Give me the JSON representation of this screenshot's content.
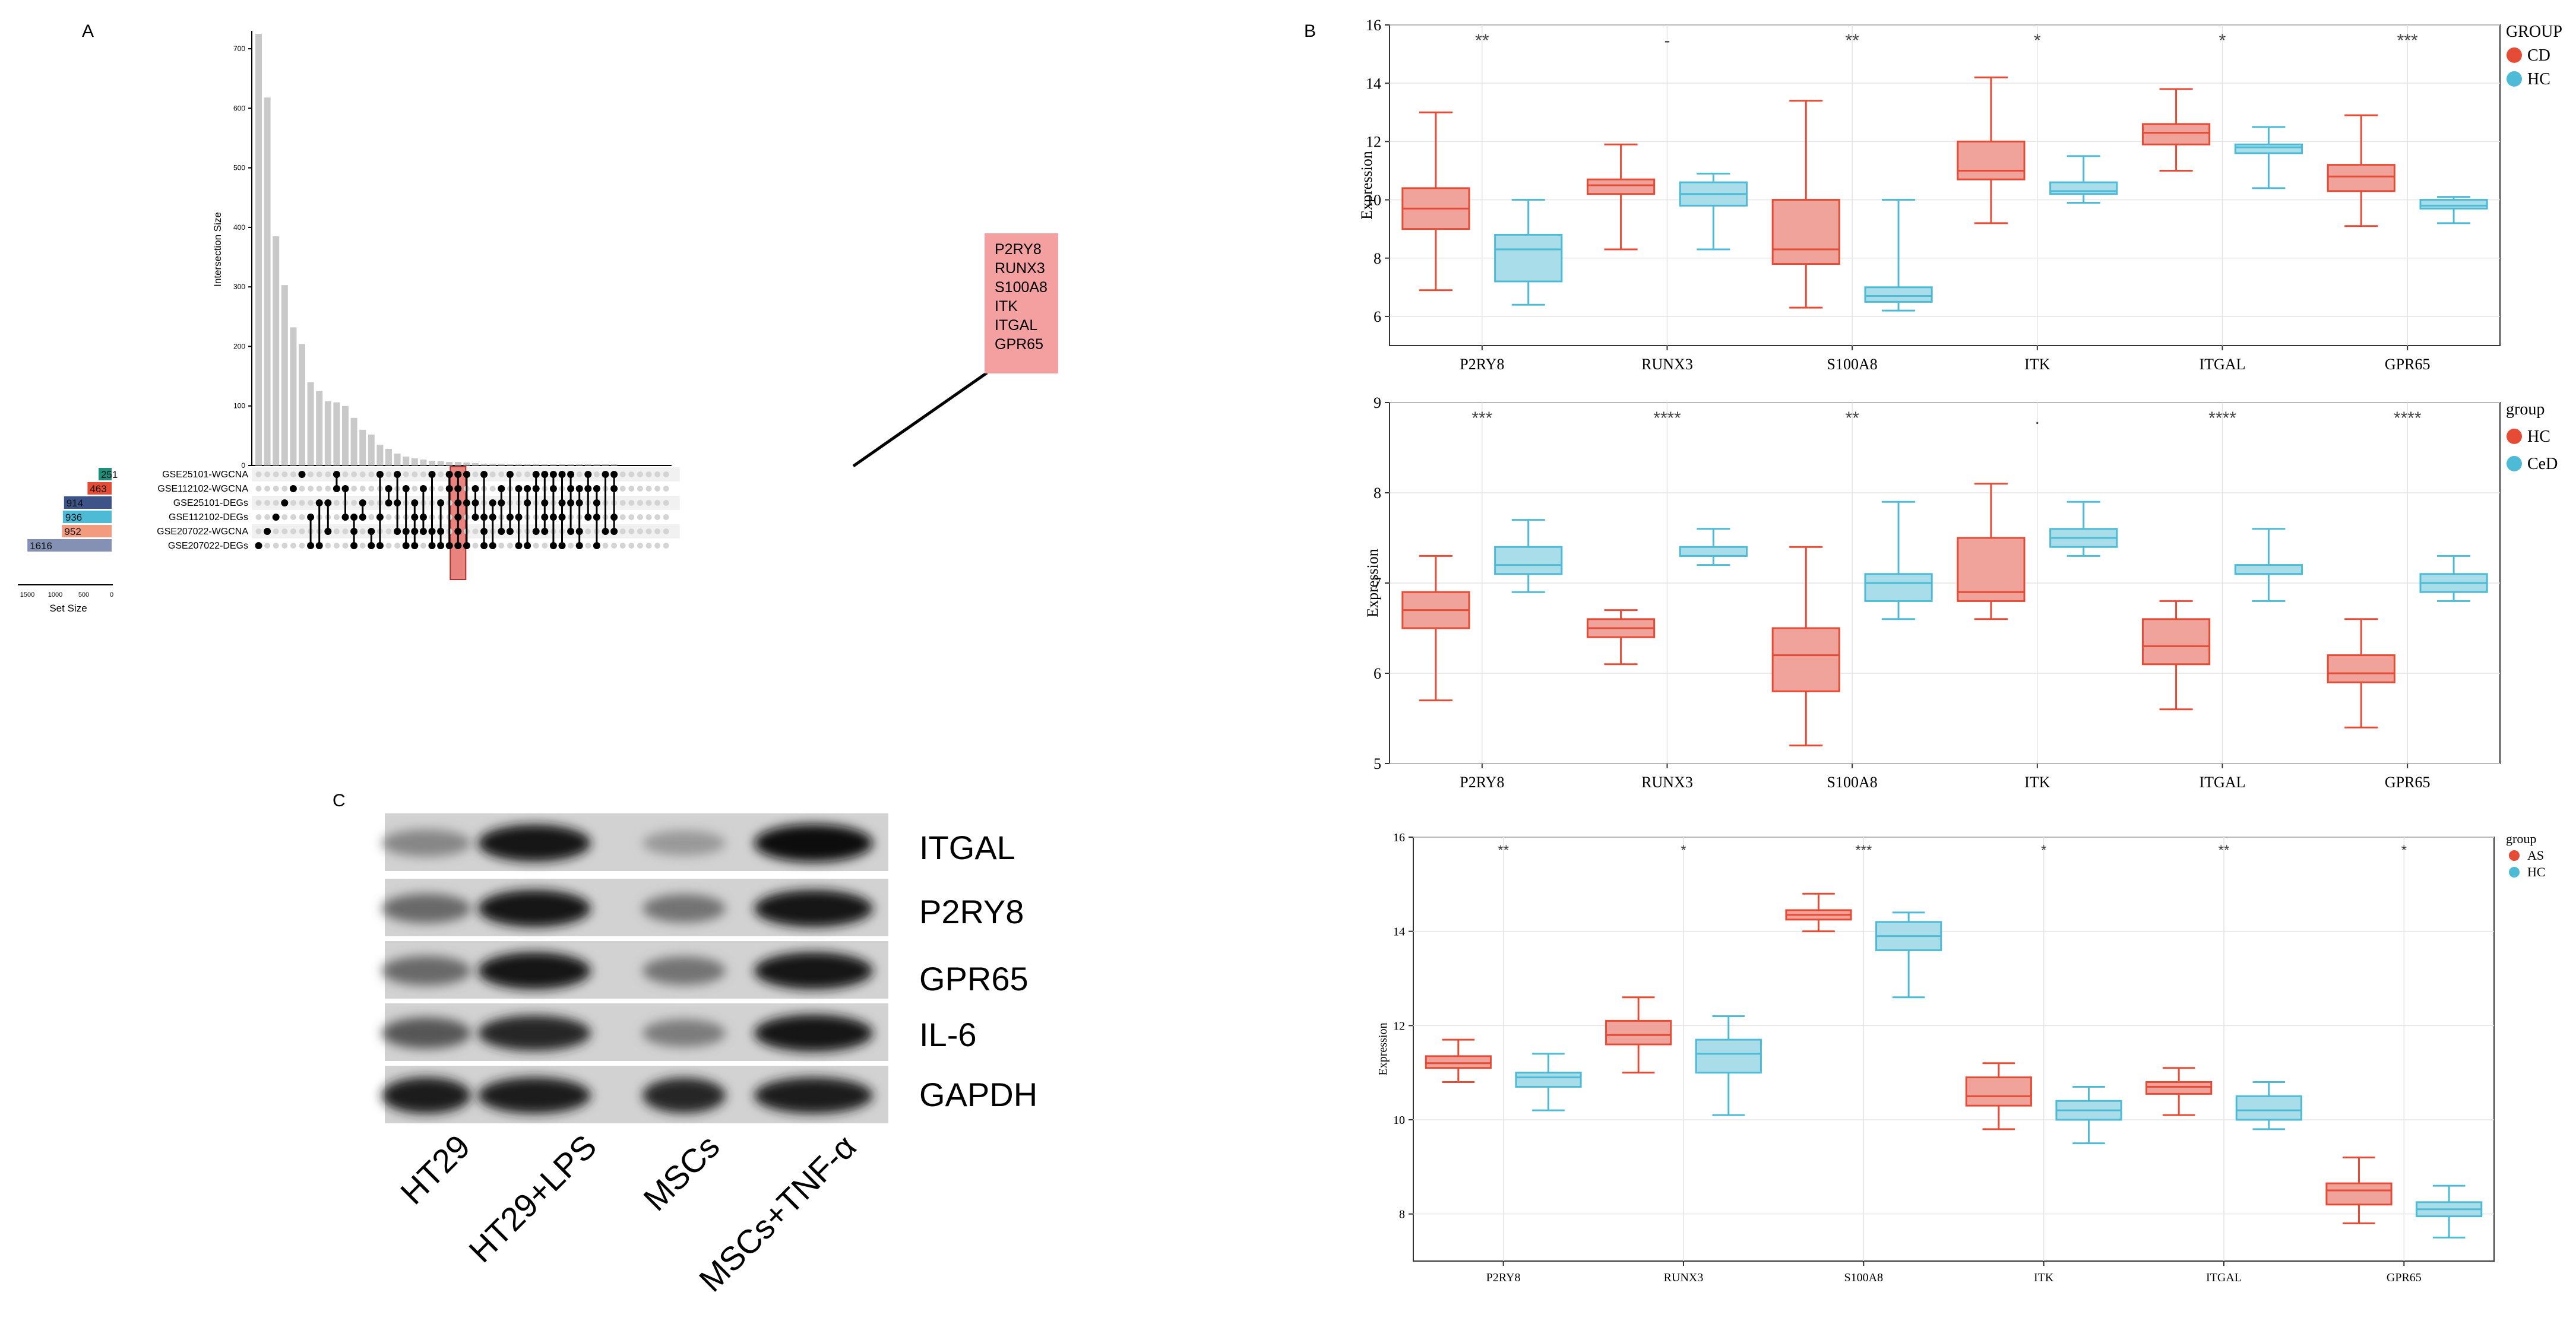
{
  "panel_labels": {
    "a": "A",
    "b": "B",
    "c": "C"
  },
  "chart_data": [
    {
      "id": "upset",
      "type": "bar",
      "ylabel": "Intersection Size",
      "ylim": [
        0,
        730
      ],
      "yticks": [
        0,
        100,
        200,
        300,
        400,
        500,
        600,
        700
      ],
      "values": [
        725,
        618,
        385,
        303,
        232,
        204,
        140,
        125,
        108,
        106,
        100,
        80,
        60,
        52,
        35,
        28,
        20,
        15,
        12,
        10,
        8,
        7,
        6,
        6,
        5,
        4,
        3,
        3,
        3,
        2,
        2,
        2,
        2,
        2,
        2,
        2,
        2,
        2,
        2,
        2,
        2,
        2
      ],
      "sets": [
        "GSE25101-WGCNA",
        "GSE112102-WGCNA",
        "GSE25101-DEGs",
        "GSE112102-DEGs",
        "GSE207022-WGCNA",
        "GSE207022-DEGs"
      ],
      "set_sizes": [
        251,
        463,
        914,
        936,
        952,
        1616
      ],
      "set_colors": [
        "#1f8f7a",
        "#e64b35",
        "#3c5488",
        "#4dbbd5",
        "#f39b7f",
        "#8491b4"
      ],
      "set_axis_label": "Set Size",
      "set_axis_ticks": [
        "1500",
        "1000",
        "500",
        "0"
      ],
      "memberships": [
        [
          5
        ],
        [
          4
        ],
        [
          3
        ],
        [
          2
        ],
        [
          1
        ],
        [
          0
        ],
        [
          3,
          5
        ],
        [
          2,
          5
        ],
        [
          2,
          4
        ],
        [
          0,
          1
        ],
        [
          1,
          3
        ],
        [
          3,
          4,
          5
        ],
        [
          2,
          3
        ],
        [
          4,
          5
        ],
        [
          0,
          3,
          5
        ],
        [
          1,
          2
        ],
        [
          0,
          2,
          4
        ],
        [
          1,
          4,
          5
        ],
        [
          2,
          3,
          4,
          5
        ],
        [
          1,
          3,
          4
        ],
        [
          0,
          4,
          5
        ],
        [
          2,
          4,
          5
        ],
        [
          0,
          1,
          5
        ],
        [
          0,
          1,
          2,
          3,
          4,
          5
        ],
        [
          0,
          2,
          5
        ],
        [
          1,
          2,
          3
        ],
        [
          0,
          3,
          4,
          5
        ],
        [
          2,
          3,
          5
        ],
        [
          1,
          2,
          4
        ],
        [
          0,
          3,
          4
        ],
        [
          1,
          3,
          5
        ],
        [
          1,
          2,
          5
        ],
        [
          0,
          1,
          4
        ],
        [
          0,
          2,
          3,
          4
        ],
        [
          0,
          1,
          3,
          5
        ],
        [
          0,
          2,
          3,
          5
        ],
        [
          0,
          1,
          2,
          4
        ],
        [
          1,
          2,
          4,
          5
        ],
        [
          0,
          1,
          3
        ],
        [
          1,
          2,
          3,
          5
        ],
        [
          0,
          4
        ],
        [
          0,
          1,
          3,
          4
        ]
      ],
      "highlight_index": 23,
      "callout_genes": [
        "P2RY8",
        "RUNX3",
        "S100A8",
        "ITK",
        "ITGAL",
        "GPR65"
      ]
    },
    {
      "id": "box_cd",
      "type": "box",
      "categories": [
        "P2RY8",
        "RUNX3",
        "S100A8",
        "ITK",
        "ITGAL",
        "GPR65"
      ],
      "ylabel": "Expression",
      "ylim": [
        5,
        16
      ],
      "yticks": [
        6,
        8,
        10,
        12,
        14,
        16
      ],
      "legend_title": "GROUP",
      "significance": [
        "**",
        "-",
        "**",
        "*",
        "*",
        "***"
      ],
      "series": [
        {
          "name": "CD",
          "color": "#e64b35",
          "fill": "#f0a39a",
          "boxes": [
            [
              6.9,
              9.0,
              9.7,
              10.4,
              13.0
            ],
            [
              8.3,
              10.2,
              10.5,
              10.7,
              11.9
            ],
            [
              6.3,
              7.8,
              8.3,
              10.0,
              13.4
            ],
            [
              9.2,
              10.7,
              11.0,
              12.0,
              14.2
            ],
            [
              11.0,
              11.9,
              12.3,
              12.6,
              13.8
            ],
            [
              9.1,
              10.3,
              10.8,
              11.2,
              12.9
            ]
          ]
        },
        {
          "name": "HC",
          "color": "#4dbbd5",
          "fill": "#a8dde9",
          "boxes": [
            [
              6.4,
              7.2,
              8.3,
              8.8,
              10.0
            ],
            [
              8.3,
              9.8,
              10.2,
              10.6,
              10.9
            ],
            [
              6.2,
              6.5,
              6.7,
              7.0,
              10.0
            ],
            [
              9.9,
              10.2,
              10.3,
              10.6,
              11.5
            ],
            [
              10.4,
              11.6,
              11.8,
              11.9,
              12.5
            ],
            [
              9.2,
              9.7,
              9.8,
              10.0,
              10.1
            ]
          ]
        }
      ]
    },
    {
      "id": "box_ced",
      "type": "box",
      "categories": [
        "P2RY8",
        "RUNX3",
        "S100A8",
        "ITK",
        "ITGAL",
        "GPR65"
      ],
      "ylabel": "Expression",
      "ylim": [
        5,
        9
      ],
      "yticks": [
        5,
        6,
        7,
        8,
        9
      ],
      "legend_title": "group",
      "significance": [
        "***",
        "****",
        "**",
        ".",
        "****",
        "****"
      ],
      "series": [
        {
          "name": "HC",
          "color": "#e64b35",
          "fill": "#f0a39a",
          "boxes": [
            [
              5.7,
              6.5,
              6.7,
              6.9,
              7.3
            ],
            [
              6.1,
              6.4,
              6.5,
              6.6,
              6.7
            ],
            [
              5.2,
              5.8,
              6.2,
              6.5,
              7.4
            ],
            [
              6.6,
              6.8,
              6.9,
              7.5,
              8.1
            ],
            [
              5.6,
              6.1,
              6.3,
              6.6,
              6.8
            ],
            [
              5.4,
              5.9,
              6.0,
              6.2,
              6.6
            ]
          ]
        },
        {
          "name": "CeD",
          "color": "#4dbbd5",
          "fill": "#a8dde9",
          "boxes": [
            [
              6.9,
              7.1,
              7.2,
              7.4,
              7.7
            ],
            [
              7.2,
              7.3,
              7.3,
              7.4,
              7.6
            ],
            [
              6.6,
              6.8,
              7.0,
              7.1,
              7.9
            ],
            [
              7.3,
              7.4,
              7.5,
              7.6,
              7.9
            ],
            [
              6.8,
              7.1,
              7.1,
              7.2,
              7.6
            ],
            [
              6.8,
              6.9,
              7.0,
              7.1,
              7.3
            ]
          ]
        }
      ]
    },
    {
      "id": "box_as",
      "type": "box",
      "categories": [
        "P2RY8",
        "RUNX3",
        "S100A8",
        "ITK",
        "ITGAL",
        "GPR65"
      ],
      "ylabel": "Expression",
      "ylim": [
        7,
        16
      ],
      "yticks": [
        8,
        10,
        12,
        14,
        16
      ],
      "legend_title": "group",
      "significance": [
        "**",
        "*",
        "***",
        "*",
        "**",
        "*"
      ],
      "series": [
        {
          "name": "AS",
          "color": "#e64b35",
          "fill": "#f0a39a",
          "boxes": [
            [
              10.8,
              11.1,
              11.2,
              11.35,
              11.7
            ],
            [
              11.0,
              11.6,
              11.8,
              12.1,
              12.6
            ],
            [
              14.0,
              14.25,
              14.35,
              14.45,
              14.8
            ],
            [
              9.8,
              10.3,
              10.5,
              10.9,
              11.2
            ],
            [
              10.1,
              10.55,
              10.7,
              10.8,
              11.1
            ],
            [
              7.8,
              8.2,
              8.5,
              8.65,
              9.2
            ]
          ]
        },
        {
          "name": "HC",
          "color": "#4dbbd5",
          "fill": "#a8dde9",
          "boxes": [
            [
              10.2,
              10.7,
              10.9,
              11.0,
              11.4
            ],
            [
              10.1,
              11.0,
              11.4,
              11.7,
              12.2
            ],
            [
              12.6,
              13.6,
              13.9,
              14.2,
              14.4
            ],
            [
              9.5,
              10.0,
              10.2,
              10.4,
              10.7
            ],
            [
              9.8,
              10.0,
              10.2,
              10.5,
              10.8
            ],
            [
              7.5,
              7.95,
              8.1,
              8.25,
              8.6
            ]
          ]
        }
      ]
    }
  ],
  "western_blot": {
    "proteins": [
      "ITGAL",
      "P2RY8",
      "GPR65",
      "IL-6",
      "GAPDH"
    ],
    "lanes": [
      "HT29",
      "HT29+LPS",
      "MSCs",
      "MSCs+TNF-α"
    ],
    "intensity": [
      [
        0.35,
        0.95,
        0.25,
        1.0
      ],
      [
        0.5,
        0.95,
        0.45,
        0.95
      ],
      [
        0.5,
        0.95,
        0.45,
        0.95
      ],
      [
        0.6,
        0.85,
        0.4,
        0.95
      ],
      [
        0.9,
        0.9,
        0.85,
        0.9
      ]
    ]
  }
}
